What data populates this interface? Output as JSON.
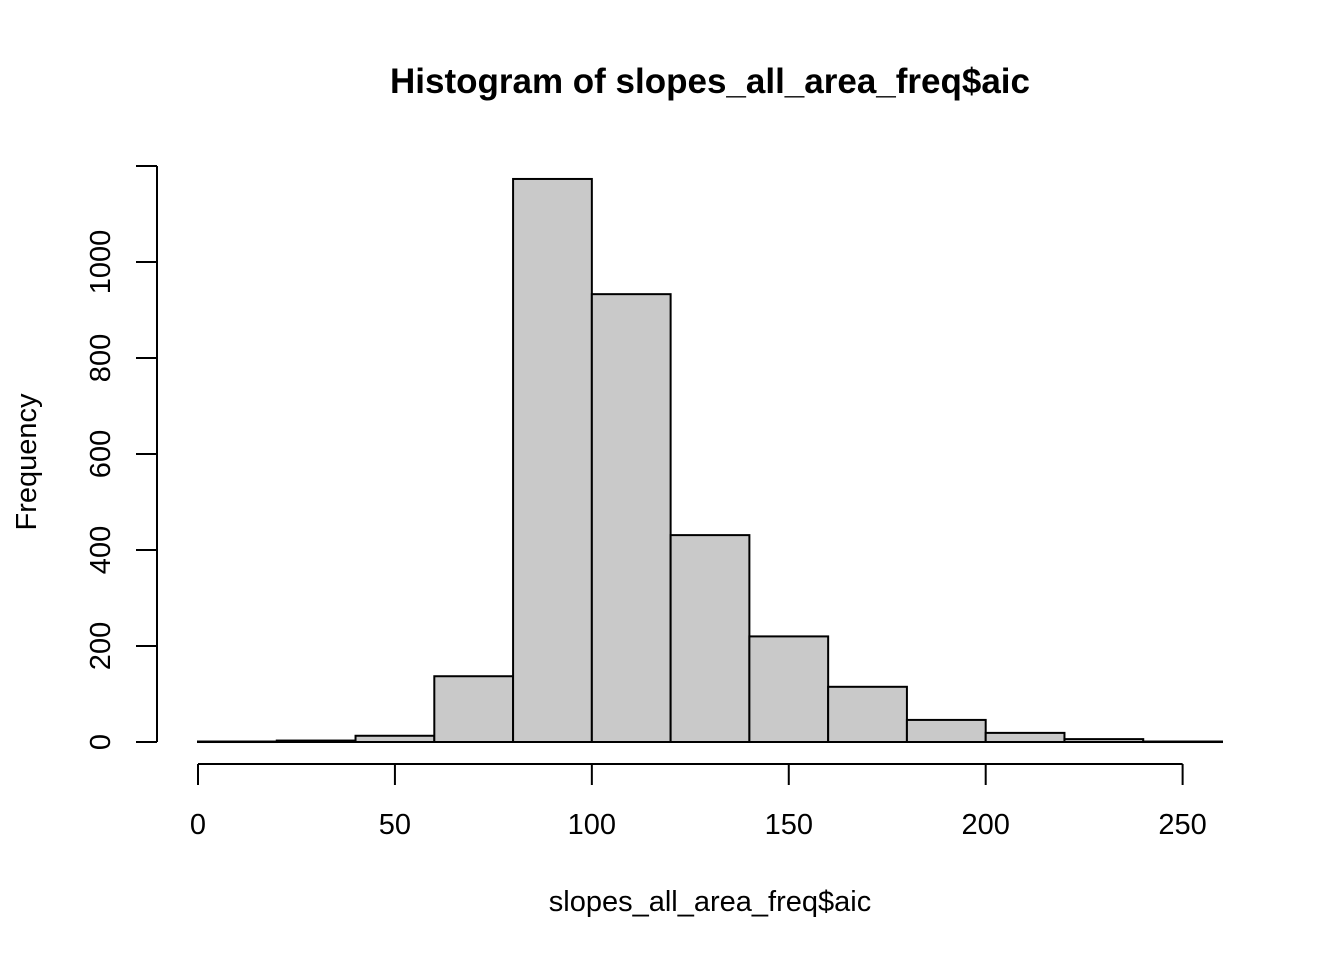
{
  "chart_data": {
    "type": "bar",
    "title": "Histogram of slopes_all_area_freq$aic",
    "xlabel": "slopes_all_area_freq$aic",
    "ylabel": "Frequency",
    "bin_edges": [
      0,
      20,
      40,
      60,
      80,
      100,
      120,
      140,
      160,
      180,
      200,
      220,
      240,
      260
    ],
    "values": [
      1,
      3,
      13,
      137,
      1173,
      933,
      431,
      220,
      115,
      46,
      19,
      6,
      1
    ],
    "xlim": [
      0,
      260
    ],
    "ylim": [
      0,
      1200
    ],
    "x_ticks": [
      0,
      50,
      100,
      150,
      200,
      250
    ],
    "x_tick_labels": [
      "0",
      "50",
      "100",
      "150",
      "200",
      "250"
    ],
    "y_ticks": [
      0,
      200,
      400,
      600,
      800,
      1000
    ],
    "y_tick_labels": [
      "0",
      "200",
      "400",
      "600",
      "800",
      "1000"
    ],
    "grid": false,
    "colors": {
      "bar_fill": "#c9c9c9",
      "bar_stroke": "#000000"
    }
  }
}
